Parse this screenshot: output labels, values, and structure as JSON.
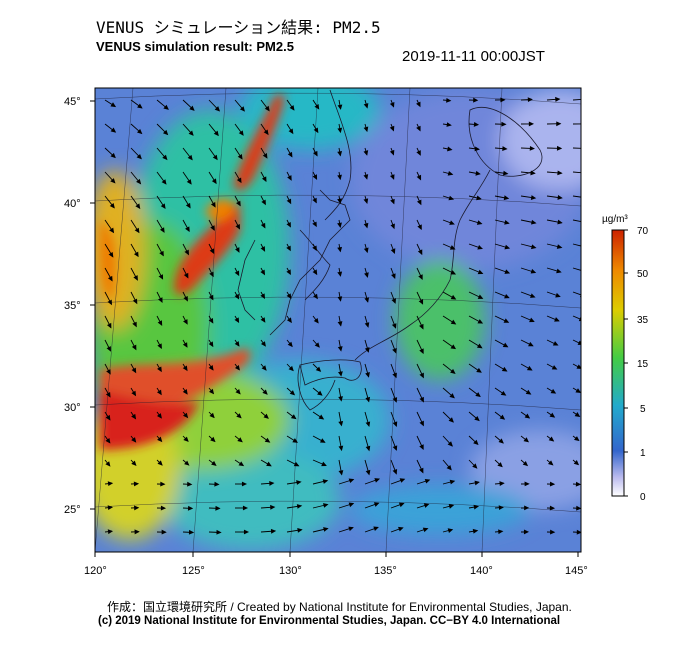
{
  "header": {
    "title_jp": "VENUS シミュレーション結果: PM2.5",
    "title_en": "VENUS simulation result: PM2.5",
    "timestamp": "2019-11-11 00:00JST"
  },
  "map": {
    "lat_labels": [
      "45°",
      "40°",
      "35°",
      "30°",
      "25°"
    ],
    "lon_labels": [
      "120°",
      "125°",
      "130°",
      "135°",
      "140°",
      "145°"
    ]
  },
  "colorbar": {
    "unit": "µg/m³",
    "ticks": [
      "70",
      "50",
      "35",
      "15",
      "5",
      "1",
      "0"
    ],
    "colors": [
      "#cc2200",
      "#ee8800",
      "#ddcc00",
      "#44cc44",
      "#22aacc",
      "#3366cc",
      "#bbbbee",
      "#ffffff"
    ]
  },
  "footer": {
    "credit_jp": "作成：国立環境研究所 / Created by National Institute for Environmental Studies, Japan.",
    "credit_en": "(c) 2019 National Institute for Environmental Studies, Japan. CC−BY 4.0 International"
  }
}
